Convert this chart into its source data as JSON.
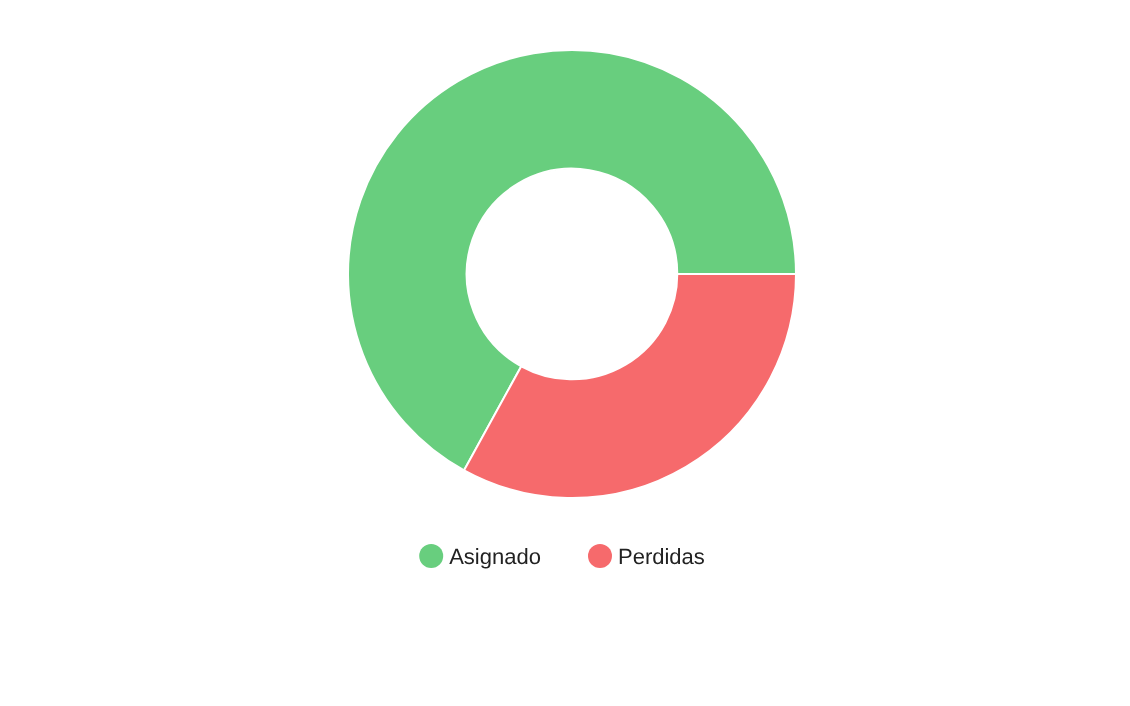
{
  "chart_data": {
    "type": "donut",
    "categories": [
      "Asignado",
      "Perdidas"
    ],
    "values": [
      67,
      33
    ],
    "colors": [
      "#68ce7e",
      "#f66a6c"
    ],
    "legend": "bottom"
  }
}
